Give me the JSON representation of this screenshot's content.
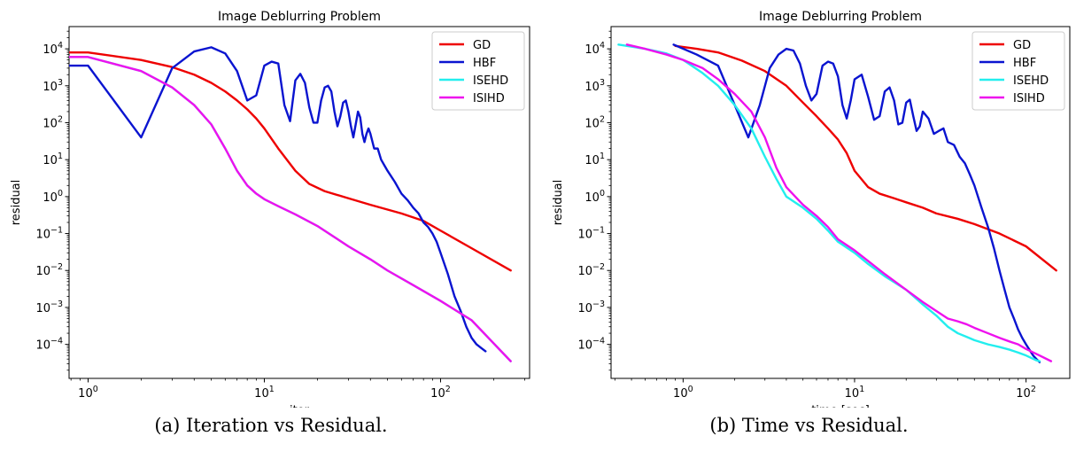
{
  "captions": [
    "(a) Iteration vs Residual.",
    "(b) Time vs Residual."
  ],
  "colors": {
    "GD": "#ee0000",
    "HBF": "#0a14d0",
    "ISEHD": "#22eeee",
    "ISIHD": "#ee11ee"
  },
  "chart_data": [
    {
      "type": "line",
      "title": "Image Deblurring Problem",
      "xlabel": "iter",
      "ylabel": "residual",
      "xscale": "log",
      "yscale": "log",
      "xlim": [
        0.78,
        320
      ],
      "ylim": [
        1.2e-05,
        40000
      ],
      "xticks": [
        1,
        10,
        100
      ],
      "xtick_labels": [
        "10^0",
        "10^1",
        "10^2"
      ],
      "yticks": [
        0.0001,
        0.001,
        0.01,
        0.1,
        1,
        10,
        100,
        1000,
        10000
      ],
      "ytick_labels": [
        "10^-4",
        "10^-3",
        "10^-2",
        "10^-1",
        "10^0",
        "10^1",
        "10^2",
        "10^3",
        "10^4"
      ],
      "grid": false,
      "legend": "top-right",
      "series": [
        {
          "name": "GD",
          "x": [
            0.78,
            1,
            2,
            3,
            4,
            5,
            6,
            7,
            8,
            9,
            10,
            12,
            15,
            18,
            22,
            30,
            40,
            60,
            80,
            100,
            150,
            250
          ],
          "y": [
            8000,
            8000,
            5000,
            3200,
            2000,
            1200,
            700,
            400,
            230,
            130,
            70,
            20,
            5,
            2.2,
            1.4,
            0.9,
            0.6,
            0.35,
            0.22,
            0.12,
            0.04,
            0.01
          ]
        },
        {
          "name": "HBF",
          "x": [
            0.78,
            1,
            2,
            3,
            4,
            5,
            6,
            7,
            8,
            9,
            10,
            11,
            12,
            13,
            14,
            15,
            16,
            17,
            18,
            19,
            20,
            21,
            22,
            23,
            24,
            25,
            26,
            27,
            28,
            29,
            30,
            31,
            32,
            33,
            34,
            35,
            36,
            37,
            38,
            39,
            40,
            42,
            44,
            46,
            48,
            50,
            55,
            60,
            65,
            70,
            75,
            80,
            85,
            90,
            95,
            100,
            110,
            120,
            130,
            140,
            150,
            160,
            170,
            180
          ],
          "y": [
            3500,
            3500,
            40,
            3000,
            8500,
            11000,
            7500,
            2500,
            400,
            550,
            3500,
            4500,
            4000,
            300,
            110,
            1400,
            2100,
            1200,
            260,
            100,
            100,
            400,
            900,
            1000,
            700,
            200,
            80,
            150,
            350,
            400,
            200,
            80,
            40,
            90,
            200,
            140,
            50,
            30,
            50,
            70,
            50,
            20,
            20,
            10,
            7,
            5,
            2.5,
            1.2,
            0.8,
            0.5,
            0.35,
            0.2,
            0.15,
            0.1,
            0.06,
            0.03,
            0.008,
            0.002,
            0.0008,
            0.0003,
            0.00015,
            0.0001,
            8e-05,
            6.5e-05
          ]
        },
        {
          "name": "ISEHD",
          "x": [
            0.78,
            1,
            2,
            3,
            4,
            5,
            6,
            7,
            8,
            9,
            10,
            12,
            15,
            20,
            25,
            30,
            40,
            50,
            70,
            100,
            150,
            250
          ],
          "y": [
            6000,
            6000,
            2500,
            900,
            300,
            90,
            20,
            5,
            2,
            1.2,
            0.85,
            0.55,
            0.33,
            0.16,
            0.08,
            0.045,
            0.02,
            0.01,
            0.004,
            0.0015,
            0.00045,
            3.5e-05
          ]
        },
        {
          "name": "ISIHD",
          "x": [
            0.78,
            1,
            2,
            3,
            4,
            5,
            6,
            7,
            8,
            9,
            10,
            12,
            15,
            20,
            25,
            30,
            40,
            50,
            70,
            100,
            150,
            250
          ],
          "y": [
            6000,
            6000,
            2500,
            900,
            300,
            90,
            20,
            5,
            2,
            1.2,
            0.85,
            0.55,
            0.33,
            0.16,
            0.08,
            0.045,
            0.02,
            0.01,
            0.004,
            0.0015,
            0.00045,
            3.5e-05
          ]
        }
      ]
    },
    {
      "type": "line",
      "title": "Image Deblurring Problem",
      "xlabel": "time [sec]",
      "ylabel": "residual",
      "xscale": "log",
      "yscale": "log",
      "xlim": [
        0.38,
        180
      ],
      "ylim": [
        1.2e-05,
        40000
      ],
      "xticks": [
        1,
        10,
        100
      ],
      "xtick_labels": [
        "10^0",
        "10^1",
        "10^2"
      ],
      "yticks": [
        0.0001,
        0.001,
        0.01,
        0.1,
        1,
        10,
        100,
        1000,
        10000
      ],
      "ytick_labels": [
        "10^-4",
        "10^-3",
        "10^-2",
        "10^-1",
        "10^0",
        "10^1",
        "10^2",
        "10^3",
        "10^4"
      ],
      "grid": false,
      "legend": "top-right",
      "series": [
        {
          "name": "GD",
          "x": [
            0.9,
            1.2,
            1.6,
            2.2,
            3,
            4,
            5,
            6,
            7,
            8,
            9,
            10,
            12,
            14,
            17,
            20,
            25,
            30,
            40,
            50,
            70,
            100,
            150
          ],
          "y": [
            12000,
            10000,
            8000,
            4800,
            2500,
            1000,
            350,
            150,
            70,
            35,
            15,
            5,
            1.8,
            1.2,
            0.9,
            0.7,
            0.5,
            0.35,
            0.25,
            0.18,
            0.1,
            0.045,
            0.01
          ]
        },
        {
          "name": "HBF",
          "x": [
            0.88,
            1.2,
            1.6,
            2.0,
            2.4,
            2.8,
            3.2,
            3.6,
            4.0,
            4.4,
            4.8,
            5.2,
            5.6,
            6.0,
            6.5,
            7.0,
            7.5,
            8.0,
            8.5,
            9.0,
            9.5,
            10,
            11,
            12,
            13,
            14,
            15,
            16,
            17,
            18,
            19,
            20,
            21,
            22,
            23,
            24,
            25,
            27,
            29,
            31,
            33,
            35,
            38,
            41,
            44,
            47,
            50,
            55,
            60,
            65,
            70,
            75,
            80,
            85,
            90,
            95,
            100,
            105,
            110,
            115,
            120
          ],
          "y": [
            13000,
            7000,
            3500,
            300,
            40,
            300,
            3000,
            7000,
            10000,
            9000,
            4000,
            1000,
            400,
            600,
            3500,
            4500,
            4000,
            1800,
            300,
            130,
            400,
            1500,
            2000,
            500,
            120,
            150,
            700,
            900,
            400,
            90,
            100,
            350,
            420,
            150,
            60,
            80,
            200,
            130,
            50,
            60,
            70,
            30,
            25,
            12,
            8,
            4,
            2,
            0.5,
            0.15,
            0.04,
            0.01,
            0.003,
            0.001,
            0.0005,
            0.00025,
            0.00015,
            0.0001,
            7e-05,
            5e-05,
            4e-05,
            3.3e-05
          ]
        },
        {
          "name": "ISEHD",
          "x": [
            0.42,
            0.6,
            0.8,
            1.0,
            1.3,
            1.6,
            2.0,
            2.5,
            3.0,
            3.5,
            4.0,
            5.0,
            6.0,
            7.0,
            8.0,
            10,
            12,
            15,
            20,
            25,
            30,
            35,
            40,
            45,
            50,
            60,
            70,
            80,
            90,
            100,
            115,
            120
          ],
          "y": [
            13000,
            10000,
            7500,
            5000,
            2200,
            1000,
            300,
            70,
            12,
            3,
            1,
            0.5,
            0.25,
            0.12,
            0.06,
            0.03,
            0.015,
            0.007,
            0.003,
            0.0012,
            0.0006,
            0.0003,
            0.0002,
            0.00016,
            0.00013,
            0.0001,
            8.5e-05,
            7.2e-05,
            6e-05,
            5e-05,
            3.7e-05,
            3.5e-05
          ]
        },
        {
          "name": "ISIHD",
          "x": [
            0.47,
            0.6,
            0.8,
            1.0,
            1.3,
            1.6,
            2.0,
            2.5,
            3.0,
            3.5,
            4.0,
            5.0,
            6.0,
            7.0,
            8.0,
            10,
            12,
            15,
            20,
            25,
            30,
            35,
            40,
            45,
            50,
            60,
            70,
            80,
            90,
            100,
            120,
            140
          ],
          "y": [
            13000,
            10000,
            7000,
            5000,
            3000,
            1500,
            600,
            200,
            40,
            6,
            1.8,
            0.6,
            0.3,
            0.15,
            0.07,
            0.035,
            0.018,
            0.008,
            0.003,
            0.0014,
            0.0008,
            0.0005,
            0.00042,
            0.00035,
            0.00028,
            0.0002,
            0.00015,
            0.00012,
            0.0001,
            7.5e-05,
            5e-05,
            3.5e-05
          ]
        }
      ]
    }
  ]
}
